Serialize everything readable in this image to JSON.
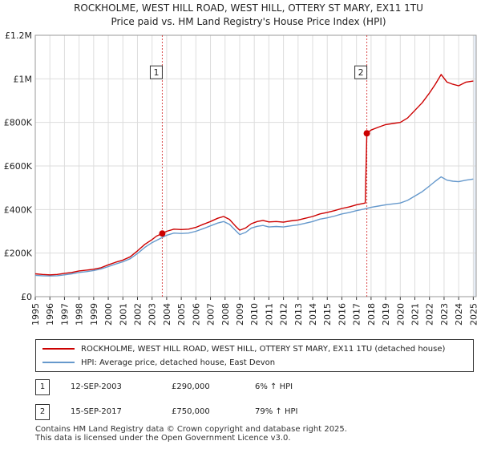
{
  "chart_data": {
    "type": "line",
    "title": "ROCKHOLME, WEST HILL ROAD, WEST HILL, OTTERY ST MARY, EX11 1TU",
    "subtitle": "Price paid vs. HM Land Registry's House Price Index (HPI)",
    "xlim": [
      1995,
      2025.2
    ],
    "ylim": [
      0,
      1200000
    ],
    "x_ticks": [
      1995,
      1996,
      1997,
      1998,
      1999,
      2000,
      2001,
      2002,
      2003,
      2004,
      2005,
      2006,
      2007,
      2008,
      2009,
      2010,
      2011,
      2012,
      2013,
      2014,
      2015,
      2016,
      2017,
      2018,
      2019,
      2020,
      2021,
      2022,
      2023,
      2024,
      2025
    ],
    "x_tick_labels": [
      "1995",
      "1996",
      "1997",
      "1998",
      "1999",
      "2000",
      "2001",
      "2002",
      "2003",
      "2004",
      "2005",
      "2006",
      "2007",
      "2008",
      "2009",
      "2010",
      "2011",
      "2012",
      "2013",
      "2014",
      "2015",
      "2016",
      "2017",
      "2018",
      "2019",
      "2020",
      "2021",
      "2022",
      "2023",
      "2024",
      "2025"
    ],
    "y_ticks": [
      0,
      200000,
      400000,
      600000,
      800000,
      1000000,
      1200000
    ],
    "y_tick_labels": [
      "£0",
      "£200K",
      "£400K",
      "£600K",
      "£800K",
      "£1M",
      "£1.2M"
    ],
    "series": [
      {
        "name": "ROCKHOLME, WEST HILL ROAD, WEST HILL, OTTERY ST MARY, EX11 1TU (detached house)",
        "color": "#cc0000",
        "points": [
          [
            1995.0,
            105000
          ],
          [
            1995.5,
            102000
          ],
          [
            1996.0,
            100000
          ],
          [
            1996.5,
            102000
          ],
          [
            1997.0,
            107000
          ],
          [
            1997.5,
            111000
          ],
          [
            1998.0,
            118000
          ],
          [
            1998.5,
            122000
          ],
          [
            1999.0,
            126000
          ],
          [
            1999.5,
            133000
          ],
          [
            2000.0,
            146000
          ],
          [
            2000.5,
            158000
          ],
          [
            2001.0,
            168000
          ],
          [
            2001.5,
            183000
          ],
          [
            2002.0,
            210000
          ],
          [
            2002.5,
            240000
          ],
          [
            2003.0,
            262000
          ],
          [
            2003.3,
            278000
          ],
          [
            2003.7,
            290000
          ],
          [
            2004.0,
            300000
          ],
          [
            2004.5,
            310000
          ],
          [
            2005.0,
            308000
          ],
          [
            2005.5,
            310000
          ],
          [
            2006.0,
            318000
          ],
          [
            2006.5,
            332000
          ],
          [
            2007.0,
            345000
          ],
          [
            2007.5,
            360000
          ],
          [
            2007.9,
            368000
          ],
          [
            2008.3,
            355000
          ],
          [
            2008.7,
            325000
          ],
          [
            2009.0,
            305000
          ],
          [
            2009.4,
            315000
          ],
          [
            2009.8,
            335000
          ],
          [
            2010.2,
            345000
          ],
          [
            2010.6,
            350000
          ],
          [
            2011.0,
            343000
          ],
          [
            2011.5,
            345000
          ],
          [
            2012.0,
            342000
          ],
          [
            2012.5,
            348000
          ],
          [
            2013.0,
            352000
          ],
          [
            2013.5,
            360000
          ],
          [
            2014.0,
            368000
          ],
          [
            2014.5,
            380000
          ],
          [
            2015.0,
            387000
          ],
          [
            2015.5,
            395000
          ],
          [
            2016.0,
            405000
          ],
          [
            2016.5,
            412000
          ],
          [
            2017.0,
            422000
          ],
          [
            2017.6,
            430000
          ],
          [
            2017.71,
            750000
          ],
          [
            2018.0,
            765000
          ],
          [
            2018.5,
            778000
          ],
          [
            2019.0,
            790000
          ],
          [
            2019.5,
            795000
          ],
          [
            2020.0,
            800000
          ],
          [
            2020.5,
            820000
          ],
          [
            2021.0,
            855000
          ],
          [
            2021.5,
            890000
          ],
          [
            2022.0,
            935000
          ],
          [
            2022.4,
            975000
          ],
          [
            2022.8,
            1020000
          ],
          [
            2023.2,
            985000
          ],
          [
            2023.6,
            975000
          ],
          [
            2024.0,
            968000
          ],
          [
            2024.5,
            985000
          ],
          [
            2025.0,
            990000
          ]
        ]
      },
      {
        "name": "HPI: Average price, detached house, East Devon",
        "color": "#6699cc",
        "points": [
          [
            1995.0,
            98000
          ],
          [
            1995.5,
            96000
          ],
          [
            1996.0,
            95000
          ],
          [
            1996.5,
            96000
          ],
          [
            1997.0,
            100000
          ],
          [
            1997.5,
            105000
          ],
          [
            1998.0,
            111000
          ],
          [
            1998.5,
            115000
          ],
          [
            1999.0,
            120000
          ],
          [
            1999.5,
            127000
          ],
          [
            2000.0,
            138000
          ],
          [
            2000.5,
            150000
          ],
          [
            2001.0,
            160000
          ],
          [
            2001.5,
            174000
          ],
          [
            2002.0,
            198000
          ],
          [
            2002.5,
            226000
          ],
          [
            2003.0,
            248000
          ],
          [
            2003.5,
            265000
          ],
          [
            2004.0,
            282000
          ],
          [
            2004.5,
            292000
          ],
          [
            2005.0,
            290000
          ],
          [
            2005.5,
            292000
          ],
          [
            2006.0,
            300000
          ],
          [
            2006.5,
            312000
          ],
          [
            2007.0,
            325000
          ],
          [
            2007.5,
            338000
          ],
          [
            2007.9,
            345000
          ],
          [
            2008.3,
            332000
          ],
          [
            2008.7,
            305000
          ],
          [
            2009.0,
            285000
          ],
          [
            2009.4,
            295000
          ],
          [
            2009.8,
            315000
          ],
          [
            2010.2,
            323000
          ],
          [
            2010.6,
            327000
          ],
          [
            2011.0,
            320000
          ],
          [
            2011.5,
            322000
          ],
          [
            2012.0,
            320000
          ],
          [
            2012.5,
            325000
          ],
          [
            2013.0,
            330000
          ],
          [
            2013.5,
            337000
          ],
          [
            2014.0,
            345000
          ],
          [
            2014.5,
            356000
          ],
          [
            2015.0,
            362000
          ],
          [
            2015.5,
            370000
          ],
          [
            2016.0,
            380000
          ],
          [
            2016.5,
            386000
          ],
          [
            2017.0,
            395000
          ],
          [
            2017.5,
            402000
          ],
          [
            2018.0,
            410000
          ],
          [
            2018.5,
            416000
          ],
          [
            2019.0,
            422000
          ],
          [
            2019.5,
            426000
          ],
          [
            2020.0,
            430000
          ],
          [
            2020.5,
            442000
          ],
          [
            2021.0,
            462000
          ],
          [
            2021.5,
            482000
          ],
          [
            2022.0,
            508000
          ],
          [
            2022.4,
            530000
          ],
          [
            2022.8,
            550000
          ],
          [
            2023.2,
            535000
          ],
          [
            2023.6,
            530000
          ],
          [
            2024.0,
            528000
          ],
          [
            2024.5,
            535000
          ],
          [
            2025.0,
            540000
          ]
        ]
      }
    ],
    "sales": [
      {
        "id": "1",
        "x": 2003.7,
        "y": 290000
      },
      {
        "id": "2",
        "x": 2017.71,
        "y": 750000
      }
    ],
    "annotation_y": 1030000,
    "legend_position": "below"
  },
  "legend": {
    "property_label": "ROCKHOLME, WEST HILL ROAD, WEST HILL, OTTERY ST MARY, EX11 1TU (detached house)",
    "hpi_label": "HPI: Average price, detached house, East Devon"
  },
  "transactions": [
    {
      "id": "1",
      "date": "12-SEP-2003",
      "price": "£290,000",
      "hpi": "6% ↑ HPI"
    },
    {
      "id": "2",
      "date": "15-SEP-2017",
      "price": "£750,000",
      "hpi": "79% ↑ HPI"
    }
  ],
  "footer": {
    "line1": "Contains HM Land Registry data © Crown copyright and database right 2025.",
    "line2": "This data is licensed under the Open Government Licence v3.0."
  },
  "colors": {
    "property": "#cc0000",
    "hpi": "#6699cc",
    "grid": "#dddddd",
    "highlight": "#e8eef7",
    "vline": "#cc0000"
  }
}
